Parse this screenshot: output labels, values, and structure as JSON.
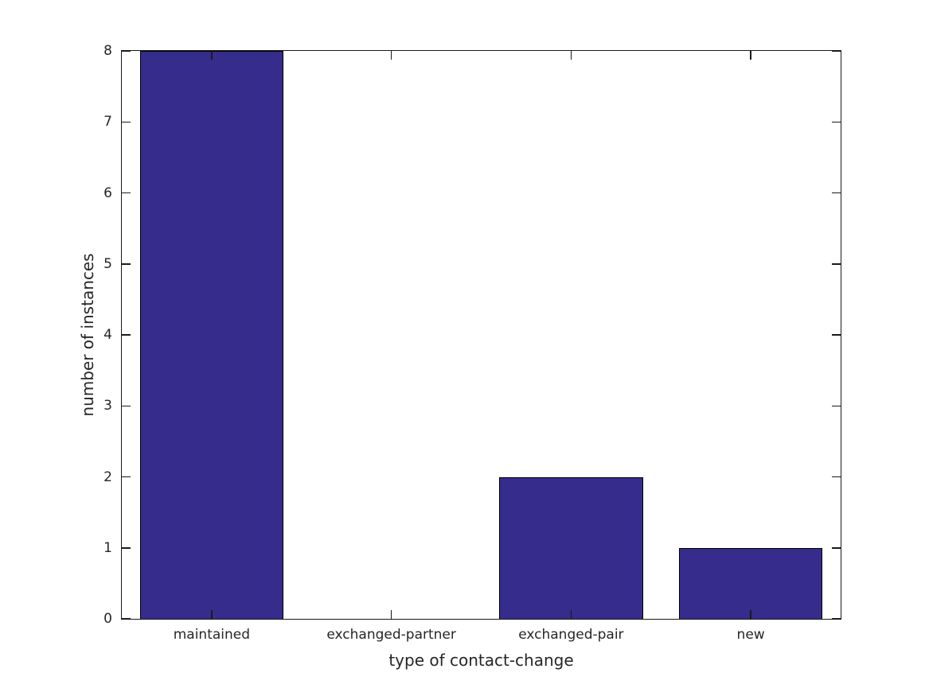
{
  "chart_data": {
    "type": "bar",
    "categories": [
      "maintained",
      "exchanged-partner",
      "exchanged-pair",
      "new"
    ],
    "values": [
      8,
      0,
      2,
      1
    ],
    "xlabel": "type of contact-change",
    "ylabel": "number of instances",
    "ylim": [
      0,
      8
    ],
    "yticks": [
      0,
      1,
      2,
      3,
      4,
      5,
      6,
      7,
      8
    ],
    "bar_width_fraction": 0.8,
    "bar_color": "#352c8b",
    "bar_edge_color": "#000000",
    "axis_color": "#1a1a1a",
    "text_color": "#262626",
    "background_color": "#ffffff",
    "grid": false,
    "legend": "none",
    "tick_direction": "in",
    "ticks_mirrored_all_sides": true
  }
}
